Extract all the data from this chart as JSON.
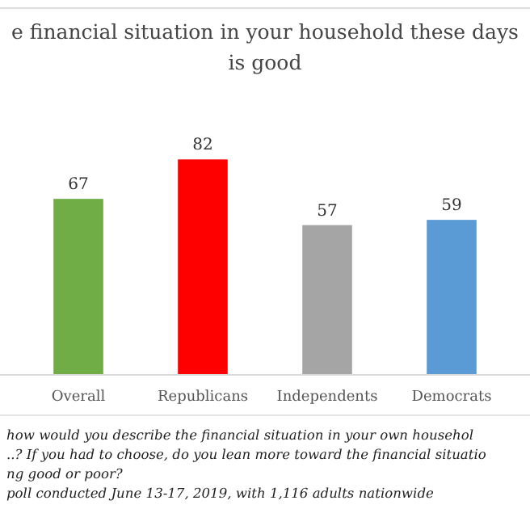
{
  "chart_data": {
    "type": "bar",
    "title": "e financial situation in your household these days is good",
    "categories": [
      "Overall",
      "Republicans",
      "Independents",
      "Democrats"
    ],
    "values": [
      67,
      82,
      57,
      59
    ],
    "colors": [
      "#70ad47",
      "#ff0000",
      "#a5a5a5",
      "#5b9bd5"
    ],
    "data_labels": true,
    "annotations": [
      "how would you describe the financial situation in your own househol",
      "..? If you had to choose, do you lean more toward the financial situatio",
      "ng good or poor?",
      "poll conducted June 13-17, 2019, with 1,116 adults nationwide"
    ]
  }
}
